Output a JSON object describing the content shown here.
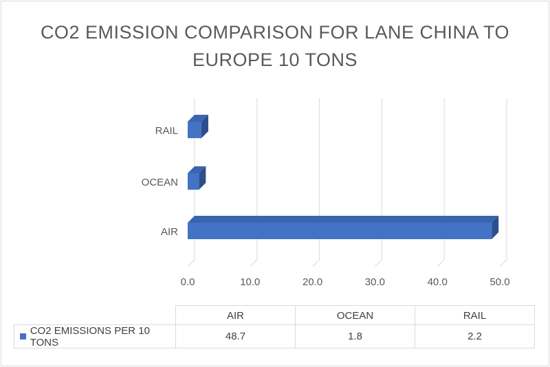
{
  "chart_data": {
    "type": "bar",
    "orientation": "horizontal",
    "title": "CO2 EMISSION COMPARISON FOR LANE CHINA TO EUROPE 10 TONS",
    "categories": [
      "AIR",
      "OCEAN",
      "RAIL"
    ],
    "series": [
      {
        "name": "CO2 EMISSIONS PER 10 TONS",
        "values": [
          48.7,
          1.8,
          2.2
        ],
        "color": "#4472C4"
      }
    ],
    "xlim": [
      0,
      50
    ],
    "x_ticks": [
      "0.0",
      "10.0",
      "20.0",
      "30.0",
      "40.0",
      "50.0"
    ],
    "grid": true,
    "legend": "data-table-below",
    "data_table": {
      "headers": [
        "AIR",
        "OCEAN",
        "RAIL"
      ],
      "row_label": "CO2 EMISSIONS PER 10 TONS",
      "values": [
        "48.7",
        "1.8",
        "2.2"
      ]
    }
  },
  "colors": {
    "bar_front": "#4472C4",
    "bar_top": "#3A64AE",
    "bar_side": "#2C4F8C",
    "grid": "#d9d9d9",
    "text": "#595959"
  }
}
